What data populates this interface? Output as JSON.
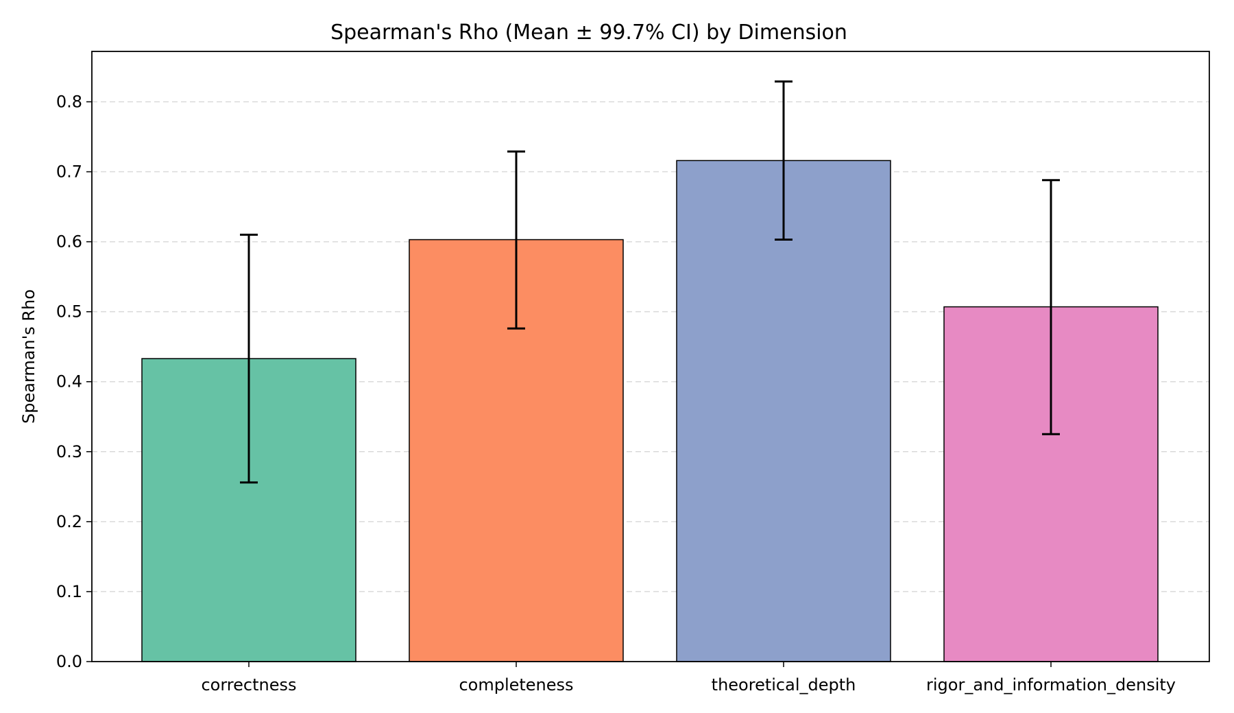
{
  "chart_data": {
    "type": "bar",
    "title": "Spearman's Rho (Mean ± 99.7% CI) by Dimension",
    "xlabel": "",
    "ylabel": "Spearman's Rho",
    "categories": [
      "correctness",
      "completeness",
      "theoretical_depth",
      "rigor_and_information_density"
    ],
    "values": [
      0.433,
      0.603,
      0.716,
      0.507
    ],
    "ci_lower": [
      0.256,
      0.476,
      0.603,
      0.325
    ],
    "ci_upper": [
      0.61,
      0.729,
      0.829,
      0.688
    ],
    "colors": [
      "#66c2a5",
      "#fc8d62",
      "#8da0cb",
      "#e78ac3"
    ],
    "ylim": [
      0,
      0.872
    ],
    "yticks": [
      "0.0",
      "0.1",
      "0.2",
      "0.3",
      "0.4",
      "0.5",
      "0.6",
      "0.7",
      "0.8"
    ],
    "grid": "y-dashed"
  }
}
